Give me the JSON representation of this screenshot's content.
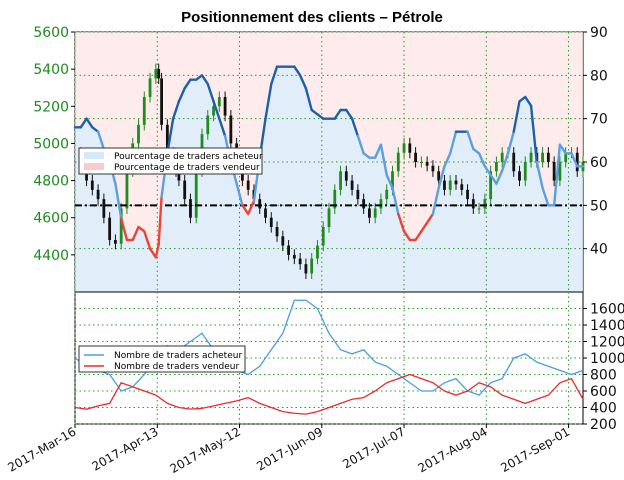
{
  "chart_data": [
    {
      "type": "line",
      "title": "Positionnement des clients – Pétrole",
      "grid": true,
      "left_axis": {
        "ylim": [
          4200,
          5600
        ],
        "ticks": [
          4400,
          4600,
          4800,
          5000,
          5200,
          5400,
          5600
        ],
        "color": "#1e8c1e"
      },
      "right_axis": {
        "ylim": [
          30,
          90
        ],
        "ticks": [
          40,
          50,
          60,
          70,
          80,
          90
        ]
      },
      "reference_line": 50,
      "x_ticks": [
        "2017-Mar-16",
        "2017-Apr-13",
        "2017-May-12",
        "2017-Jun-09",
        "2017-Jul-07",
        "2017-Aug-04",
        "2017-Sep-01"
      ],
      "legend": {
        "placement": "center-left",
        "entries": [
          "Pourcentage de traders acheteur",
          "Pourcentage de traders vendeur"
        ]
      },
      "series": [
        {
          "name": "Pourcentage de traders acheteur",
          "axis": "right",
          "colors": {
            "above_50": "#1f5fa6",
            "below_50": "#e8443a",
            "light": "#5aa0dc"
          },
          "x": [
            0,
            2,
            4,
            6,
            8,
            10,
            12,
            14,
            16,
            18,
            20,
            22,
            24,
            26,
            28,
            29,
            30,
            32,
            34,
            35,
            36,
            38,
            40,
            42,
            44,
            46,
            48,
            50,
            52,
            54,
            56,
            58,
            60,
            62,
            64,
            66,
            68,
            70,
            72,
            74,
            76,
            78,
            80,
            82,
            84,
            86,
            88,
            90,
            92,
            94,
            96,
            98,
            100,
            102,
            104,
            106,
            108,
            110,
            112,
            114,
            116,
            118,
            120,
            122,
            124,
            126,
            128,
            130,
            132,
            134,
            136,
            138,
            140,
            142,
            144,
            146,
            148,
            150,
            152,
            154,
            156,
            158,
            160,
            162,
            164,
            166,
            168,
            170,
            172,
            174,
            176
          ],
          "values": [
            68,
            68,
            70,
            68,
            67,
            63,
            60,
            55,
            47,
            42,
            42,
            45,
            44,
            40,
            38,
            41,
            52,
            62,
            70,
            72,
            74,
            77,
            79,
            79,
            80,
            78,
            74,
            70,
            66,
            60,
            55,
            50,
            48,
            51,
            61,
            70,
            78,
            82,
            82,
            82,
            82,
            80,
            77,
            72,
            71,
            70,
            70,
            70,
            72,
            72,
            70,
            66,
            62,
            61,
            61,
            64,
            57,
            54,
            48,
            44,
            42,
            42,
            44,
            46,
            48,
            54,
            59,
            62,
            67,
            67,
            67,
            63,
            62,
            59,
            57,
            55,
            58,
            62,
            67,
            74,
            75,
            73,
            60,
            54,
            50,
            50,
            64,
            62,
            62,
            59,
            59
          ]
        },
        {
          "name": "Pourcentage de traders vendeur",
          "axis": "right",
          "color": "#f5a0a0"
        },
        {
          "name": "Pétrole",
          "axis": "left",
          "type": "candlestick",
          "x": [
            0,
            2,
            4,
            6,
            8,
            10,
            12,
            14,
            16,
            18,
            20,
            22,
            24,
            26,
            28,
            29,
            30,
            32,
            34,
            35,
            36,
            38,
            40,
            42,
            44,
            46,
            48,
            50,
            52,
            54,
            56,
            58,
            60,
            62,
            64,
            66,
            68,
            70,
            72,
            74,
            76,
            78,
            80,
            82,
            84,
            86,
            88,
            90,
            92,
            94,
            96,
            98,
            100,
            102,
            104,
            106,
            108,
            110,
            112,
            114,
            116,
            118,
            120,
            122,
            124,
            126,
            128,
            130,
            132,
            134,
            136,
            138,
            140,
            142,
            144,
            146,
            148,
            150,
            152,
            154,
            156,
            158,
            160,
            162,
            164,
            166,
            168,
            170,
            172,
            174,
            176
          ],
          "values": [
            4950,
            4900,
            4800,
            4750,
            4700,
            4600,
            4480,
            4460,
            4650,
            4850,
            5000,
            5100,
            5250,
            5350,
            5400,
            5350,
            5100,
            4950,
            4900,
            4850,
            4800,
            4700,
            4600,
            4850,
            5050,
            5150,
            5200,
            5250,
            5150,
            5000,
            4900,
            4800,
            4750,
            4700,
            4650,
            4600,
            4550,
            4500,
            4450,
            4400,
            4380,
            4350,
            4300,
            4380,
            4450,
            4550,
            4650,
            4750,
            4850,
            4800,
            4750,
            4700,
            4650,
            4600,
            4650,
            4700,
            4750,
            4850,
            4950,
            5000,
            4950,
            4900,
            4900,
            4880,
            4850,
            4800,
            4750,
            4800,
            4780,
            4750,
            4700,
            4650,
            4650,
            4700,
            4850,
            4900,
            4950,
            4950,
            4850,
            4800,
            4900,
            4950,
            4900,
            4950,
            4900,
            4800,
            4900,
            4950,
            4950,
            4850,
            4900
          ]
        }
      ]
    },
    {
      "type": "line",
      "grid": true,
      "right_axis": {
        "ylim": [
          200,
          1800
        ],
        "ticks": [
          200,
          400,
          600,
          800,
          1000,
          1200,
          1400,
          1600
        ]
      },
      "legend": {
        "placement": "center-left",
        "entries": [
          "Nombre de traders acheteur",
          "Nombre de traders vendeur"
        ]
      },
      "series": [
        {
          "name": "Nombre de traders acheteur",
          "color": "#4a9ee0",
          "x": [
            0,
            4,
            8,
            12,
            16,
            20,
            24,
            28,
            32,
            36,
            40,
            44,
            48,
            52,
            56,
            60,
            64,
            68,
            72,
            76,
            80,
            84,
            88,
            92,
            96,
            100,
            104,
            108,
            112,
            116,
            120,
            124,
            128,
            132,
            136,
            140,
            144,
            148,
            152,
            156,
            160,
            164,
            168,
            172,
            176
          ],
          "values": [
            1000,
            900,
            850,
            800,
            600,
            650,
            800,
            1000,
            1150,
            1100,
            1200,
            1300,
            1100,
            900,
            850,
            800,
            900,
            1100,
            1300,
            1700,
            1700,
            1600,
            1300,
            1100,
            1050,
            1100,
            950,
            900,
            800,
            700,
            600,
            600,
            700,
            750,
            600,
            550,
            700,
            750,
            1000,
            1050,
            950,
            900,
            850,
            800,
            850
          ]
        },
        {
          "name": "Nombre de traders vendeur",
          "color": "#e62e2e",
          "x": [
            0,
            4,
            8,
            12,
            16,
            20,
            24,
            28,
            32,
            36,
            40,
            44,
            48,
            52,
            56,
            60,
            64,
            68,
            72,
            76,
            80,
            84,
            88,
            92,
            96,
            100,
            104,
            108,
            112,
            116,
            120,
            124,
            128,
            132,
            136,
            140,
            144,
            148,
            152,
            156,
            160,
            164,
            168,
            172,
            176
          ],
          "values": [
            400,
            380,
            420,
            450,
            700,
            650,
            600,
            550,
            450,
            400,
            380,
            390,
            420,
            450,
            480,
            520,
            450,
            400,
            350,
            330,
            320,
            350,
            400,
            450,
            500,
            520,
            600,
            700,
            750,
            800,
            750,
            700,
            600,
            550,
            600,
            700,
            650,
            550,
            500,
            450,
            500,
            550,
            700,
            750,
            500
          ]
        }
      ]
    }
  ]
}
